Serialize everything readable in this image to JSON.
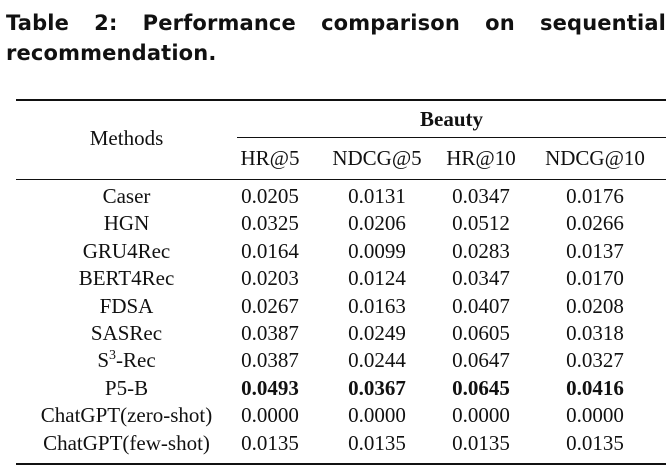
{
  "caption": "Table 2: Performance comparison on sequential recommendation.",
  "table": {
    "methods_header": "Methods",
    "group_header": "Beauty",
    "columns": [
      "HR@5",
      "NDCG@5",
      "HR@10",
      "NDCG@10"
    ],
    "rows": [
      {
        "method": "Caser",
        "values": [
          "0.0205",
          "0.0131",
          "0.0347",
          "0.0176"
        ],
        "bold": false
      },
      {
        "method": "HGN",
        "values": [
          "0.0325",
          "0.0206",
          "0.0512",
          "0.0266"
        ],
        "bold": false
      },
      {
        "method": "GRU4Rec",
        "values": [
          "0.0164",
          "0.0099",
          "0.0283",
          "0.0137"
        ],
        "bold": false
      },
      {
        "method": "BERT4Rec",
        "values": [
          "0.0203",
          "0.0124",
          "0.0347",
          "0.0170"
        ],
        "bold": false
      },
      {
        "method": "FDSA",
        "values": [
          "0.0267",
          "0.0163",
          "0.0407",
          "0.0208"
        ],
        "bold": false
      },
      {
        "method": "SASRec",
        "values": [
          "0.0387",
          "0.0249",
          "0.0605",
          "0.0318"
        ],
        "bold": false
      },
      {
        "method": "S3-Rec",
        "values": [
          "0.0387",
          "0.0244",
          "0.0647",
          "0.0327"
        ],
        "bold": false
      },
      {
        "method": "P5-B",
        "values": [
          "0.0493",
          "0.0367",
          "0.0645",
          "0.0416"
        ],
        "bold": true
      },
      {
        "method": "ChatGPT(zero-shot)",
        "values": [
          "0.0000",
          "0.0000",
          "0.0000",
          "0.0000"
        ],
        "bold": false
      },
      {
        "method": "ChatGPT(few-shot)",
        "values": [
          "0.0135",
          "0.0135",
          "0.0135",
          "0.0135"
        ],
        "bold": false
      }
    ]
  }
}
